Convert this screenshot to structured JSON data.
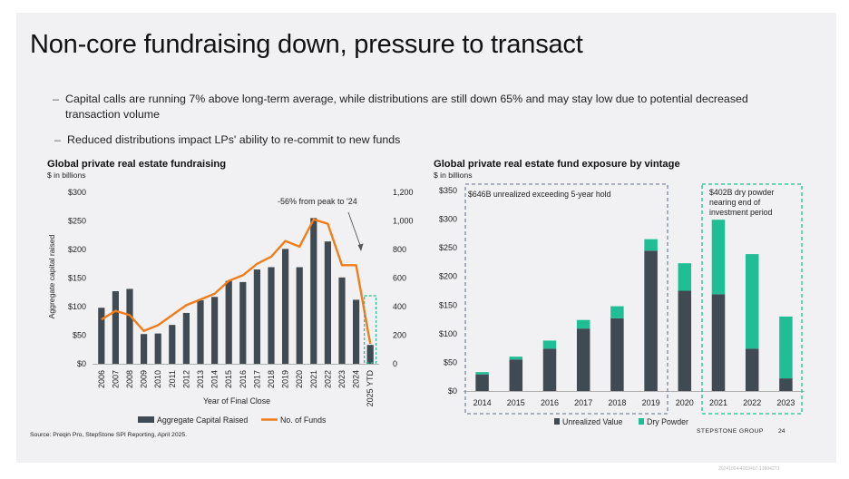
{
  "title": "Non-core fundraising down, pressure to transact",
  "bullets": [
    "Capital calls are running 7% above long-term average, while distributions are still down 65% and may stay low due to potential decreased transaction volume",
    "Reduced distributions impact LPs' ability to re-commit to new funds"
  ],
  "source": "Source: Preqin Pro, StepStone SPI Reporting, April 2025.",
  "brand": "STEPSTONE GROUP",
  "page_number": "24",
  "doc_id": "20241004-4003407-13604273",
  "colors": {
    "bar": "#3f4a52",
    "line": "#f07c1a",
    "dry": "#1fbe94",
    "dash_left": "#7e8a9e",
    "dash_right": "#1fbe94"
  },
  "chart_data": [
    {
      "type": "bar",
      "title": "Global private real estate fundraising",
      "subtitle": "$ in billions",
      "xlabel": "Year of Final Close",
      "ylabel": "Aggregate capital raised",
      "categories": [
        "2006",
        "2007",
        "2008",
        "2009",
        "2010",
        "2011",
        "2012",
        "2013",
        "2014",
        "2015",
        "2016",
        "2017",
        "2018",
        "2019",
        "2020",
        "2021",
        "2022",
        "2023",
        "2024",
        "2025 YTD"
      ],
      "series": [
        {
          "name": "Aggregate Capital Raised",
          "type": "bar",
          "axis": "left",
          "values": [
            98,
            127,
            131,
            52,
            53,
            68,
            89,
            111,
            117,
            145,
            143,
            165,
            169,
            201,
            169,
            255,
            214,
            151,
            112,
            33
          ]
        },
        {
          "name": "No. of Funds",
          "type": "line",
          "axis": "right",
          "values": [
            310,
            370,
            340,
            230,
            270,
            340,
            410,
            450,
            490,
            580,
            620,
            700,
            750,
            860,
            820,
            1010,
            980,
            690,
            690,
            140
          ]
        }
      ],
      "ylim": [
        0,
        300
      ],
      "y_ticks": [
        "$0",
        "$50",
        "$100",
        "$150",
        "$200",
        "$250",
        "$300"
      ],
      "y2lim": [
        0,
        1200
      ],
      "y2_ticks": [
        "0",
        "200",
        "400",
        "600",
        "800",
        "1,000",
        "1,200"
      ],
      "annotation": "-56% from peak to '24",
      "legend": "bottom"
    },
    {
      "type": "bar",
      "stacked": true,
      "title": "Global private real estate fund exposure by vintage",
      "subtitle": "$ in billions",
      "categories": [
        "2014",
        "2015",
        "2016",
        "2017",
        "2018",
        "2019",
        "2020",
        "2021",
        "2022",
        "2023"
      ],
      "series": [
        {
          "name": "Unrealized Value",
          "values": [
            29,
            55,
            74,
            109,
            127,
            245,
            175,
            169,
            74,
            22
          ]
        },
        {
          "name": "Dry Powder",
          "values": [
            4,
            5,
            14,
            15,
            21,
            20,
            48,
            130,
            165,
            108
          ]
        }
      ],
      "ylim": [
        0,
        350
      ],
      "y_ticks": [
        "$0",
        "$50",
        "$100",
        "$150",
        "$200",
        "$250",
        "$300",
        "$350"
      ],
      "annotations": [
        "$646B unrealized exceeding 5-year hold",
        "$402B dry powder nearing end of investment period"
      ],
      "legend": "bottom"
    }
  ]
}
